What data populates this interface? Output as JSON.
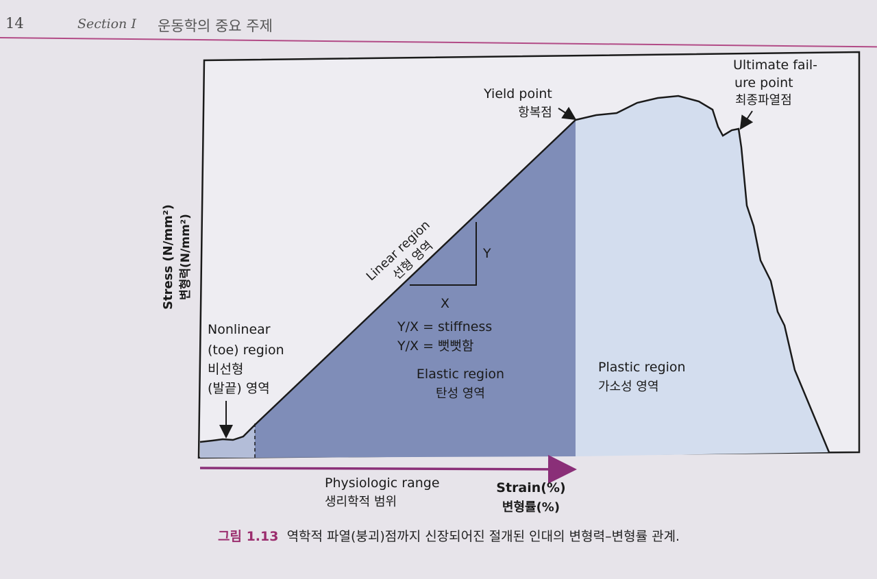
{
  "header": {
    "page_number": "14",
    "section_label": "Section I",
    "section_title": "운동학의 중요 주제"
  },
  "figure": {
    "y_axis_label_en": "Stress (N/mm²)",
    "y_axis_label_ko": "변형력(N/mm²)",
    "x_axis_label_en": "Strain(%)",
    "x_axis_label_ko": "변형률(%)",
    "toe_region": [
      "Nonlinear",
      "(toe) region",
      "비선형",
      "(발끝) 영역"
    ],
    "linear_region": [
      "Linear region",
      "선형 영역"
    ],
    "yield_point": [
      "Yield point",
      "항복점"
    ],
    "failure_point": [
      "Ultimate fail-",
      "ure point",
      "최종파열점"
    ],
    "slope_y": "Y",
    "slope_x": "X",
    "stiffness": [
      "Y/X = stiffness",
      "Y/X = 뻣뻣함"
    ],
    "elastic_region": [
      "Elastic region",
      "탄성 영역"
    ],
    "plastic_region": [
      "Plastic region",
      "가소성 영역"
    ],
    "physiologic_range": [
      "Physiologic range",
      "생리학적 범위"
    ],
    "colors": {
      "elastic_fill": "#7f8db8",
      "plastic_fill": "#d3ddee",
      "range_arrow": "#8a2f78",
      "frame": "#1a1a1a"
    }
  },
  "caption": {
    "number": "그림 1.13",
    "text": "역학적 파열(붕괴)점까지 신장되어진 절개된 인대의 변형력–변형률 관계."
  }
}
